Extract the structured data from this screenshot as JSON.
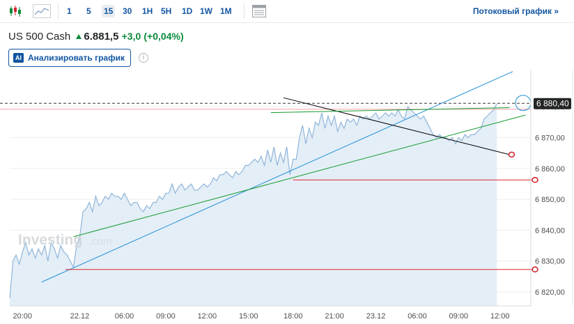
{
  "toolbar": {
    "icons": [
      "candlestick-icon",
      "area-chart-icon",
      "calendar-grid-icon"
    ],
    "timeframes": [
      "1",
      "5",
      "15",
      "30",
      "1H",
      "5H",
      "1D",
      "1W",
      "1M"
    ],
    "active_timeframe": "15",
    "stream_label": "Потоковый график »"
  },
  "quote": {
    "name": "US 500 Cash",
    "price": "6.881,5",
    "change": "+3,0",
    "change_pct": "(+0,04%)",
    "up_color": "#0a8a3a"
  },
  "analyze": {
    "badge": "AI",
    "label": "Анализировать график"
  },
  "info_icon": "i",
  "watermark": {
    "brand": "Investing",
    "suffix": ".com"
  },
  "current_price_label": "6 880,40",
  "chart_data": {
    "type": "area",
    "title": "",
    "xlabel": "",
    "ylabel": "",
    "ylim": [
      6815.5,
      6892
    ],
    "y_ticks": [
      "6 820,00",
      "6 830,00",
      "6 840,00",
      "6 850,00",
      "6 860,00",
      "6 870,00",
      "6 880,00"
    ],
    "y_tick_values": [
      6820,
      6830,
      6840,
      6850,
      6860,
      6870,
      6880
    ],
    "x_ticks": [
      "20:00",
      "22.12",
      "06:00",
      "09:00",
      "12:00",
      "15:00",
      "18:00",
      "21:00",
      "23.12",
      "06:00",
      "09:00",
      "12:00"
    ],
    "x_tick_index": [
      4,
      22,
      36,
      49,
      62,
      75,
      89,
      102,
      115,
      128,
      141,
      154
    ],
    "series": [
      {
        "values": [
          6818,
          6830,
          6832,
          6829,
          6833,
          6836,
          6832,
          6834,
          6831,
          6834,
          6832,
          6835,
          6830,
          6836,
          6834,
          6831,
          6835,
          6833,
          6832,
          6830,
          6828,
          6835,
          6838,
          6846,
          6847,
          6849,
          6846,
          6851,
          6848,
          6849,
          6851,
          6850,
          6852,
          6851,
          6851,
          6850,
          6852,
          6850,
          6848,
          6849,
          6849,
          6847,
          6846,
          6848,
          6847,
          6849,
          6849,
          6851,
          6850,
          6852,
          6852,
          6855,
          6852,
          6854,
          6855,
          6853,
          6854,
          6855,
          6853,
          6853,
          6854,
          6855,
          6854,
          6855,
          6857,
          6856,
          6858,
          6858,
          6859,
          6858,
          6857,
          6859,
          6858,
          6859,
          6861,
          6861,
          6862,
          6863,
          6862,
          6864,
          6861,
          6866,
          6862,
          6867,
          6861,
          6865,
          6862,
          6867,
          6858,
          6863,
          6863,
          6870,
          6874,
          6868,
          6873,
          6870,
          6875,
          6874,
          6878,
          6873,
          6877,
          6874,
          6877,
          6872,
          6875,
          6873,
          6876,
          6875,
          6876,
          6874,
          6877,
          6876,
          6877,
          6876,
          6877,
          6878,
          6876,
          6877,
          6878,
          6877,
          6878,
          6877,
          6879,
          6877,
          6876,
          6880,
          6879,
          6878,
          6877,
          6876,
          6877,
          6875,
          6873,
          6871,
          6870,
          6871,
          6870,
          6870,
          6869,
          6870,
          6868,
          6870,
          6869,
          6871,
          6870,
          6871,
          6871,
          6872,
          6873,
          6876,
          6877,
          6878,
          6879,
          6881
        ]
      }
    ],
    "drawings": {
      "horizontal_lines": [
        6856.3,
        6827.3
      ],
      "trend_lines": [
        {
          "from": [
            10,
            6823.2
          ],
          "to": [
            158,
            6891.4
          ],
          "color": "#1c8fd6"
        },
        {
          "from": [
            20,
            6837.9
          ],
          "to": [
            162,
            6877.3
          ],
          "color": "#139a2d"
        },
        {
          "from": [
            86,
            6882.9
          ],
          "to": [
            157,
            6864.5
          ],
          "color": "#000000"
        }
      ],
      "green_short_line": {
        "from": [
          82,
          6878.1
        ],
        "to": [
          157,
          6879.7
        ]
      }
    },
    "colors": {
      "area_line": "#8fb5d9",
      "area_fill": "#e4eef7",
      "horizontal": "#e0232f",
      "marker": "#d0262e",
      "grid": "#eeeeee",
      "label_bg": "#232526"
    }
  }
}
